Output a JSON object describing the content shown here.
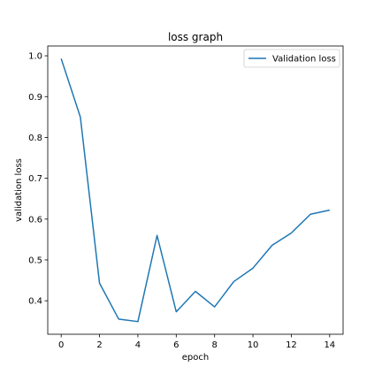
{
  "chart_data": {
    "type": "line",
    "title": "loss graph",
    "xlabel": "epoch",
    "ylabel": "validation loss",
    "xlim": [
      -0.7,
      14.7
    ],
    "ylim": [
      0.318,
      1.024
    ],
    "xticks": [
      0,
      2,
      4,
      6,
      8,
      10,
      12,
      14
    ],
    "yticks": [
      0.4,
      0.5,
      0.6,
      0.7,
      0.8,
      0.9,
      1.0
    ],
    "xtick_labels": [
      "0",
      "2",
      "4",
      "6",
      "8",
      "10",
      "12",
      "14"
    ],
    "ytick_labels": [
      "0.4",
      "0.5",
      "0.6",
      "0.7",
      "0.8",
      "0.9",
      "1.0"
    ],
    "grid": false,
    "legend_position": "top-right",
    "series": [
      {
        "name": "Validation loss",
        "color": "#1f77b4",
        "x": [
          0,
          1,
          2,
          3,
          4,
          5,
          6,
          7,
          8,
          9,
          10,
          11,
          12,
          13,
          14
        ],
        "y": [
          0.993,
          0.85,
          0.443,
          0.355,
          0.349,
          0.56,
          0.373,
          0.423,
          0.385,
          0.447,
          0.48,
          0.536,
          0.566,
          0.612,
          0.622
        ]
      }
    ]
  }
}
